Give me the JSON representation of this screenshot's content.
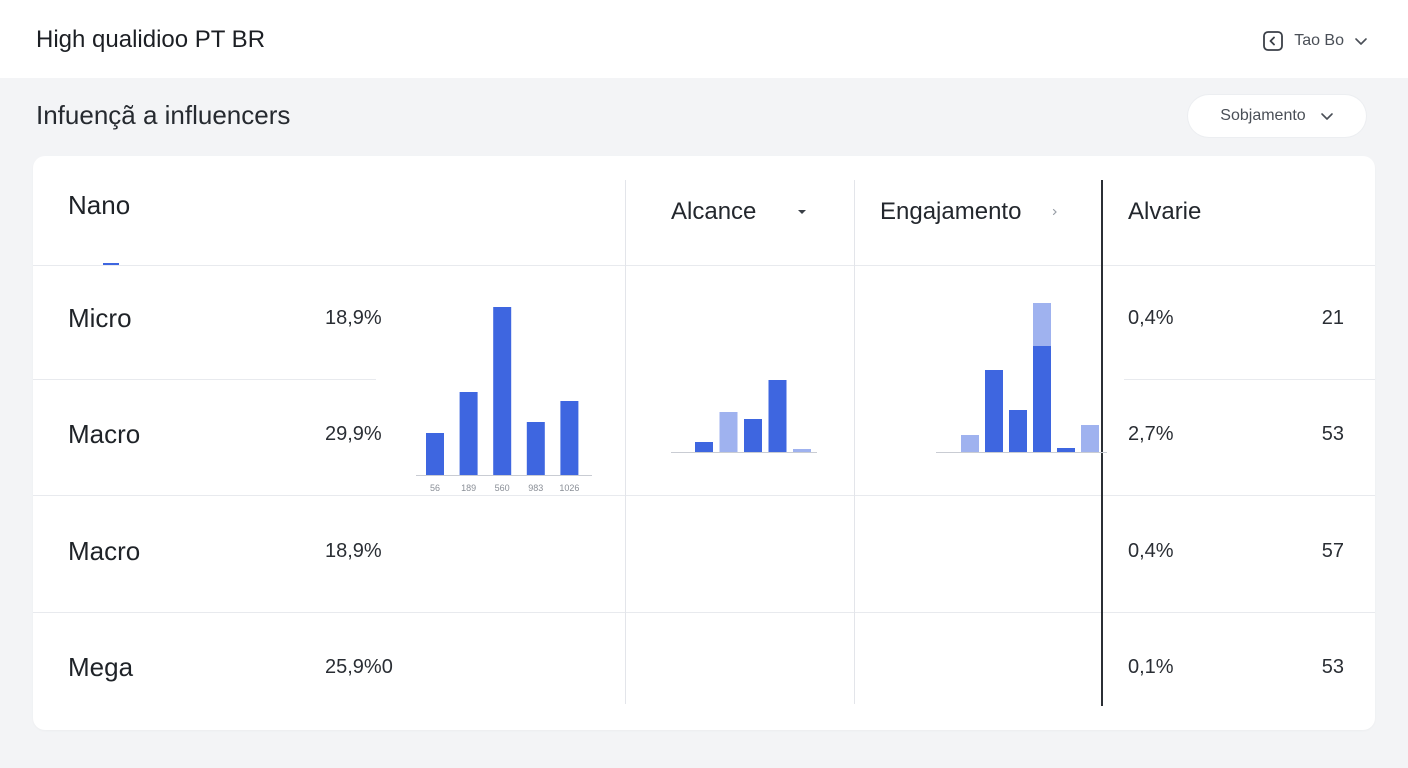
{
  "app": {
    "title": "High qualidioo PT BR"
  },
  "account": {
    "label": "Tao Bo",
    "icon": "account-icon",
    "chevron": "chevron-down-icon"
  },
  "page": {
    "title": "Infuençã a influencers"
  },
  "filter": {
    "label": "Sobjamento",
    "icon": "chevron-down-icon"
  },
  "table": {
    "first_header": "Nano",
    "columns": [
      {
        "label": "Alcance",
        "indicator": "caret-down-icon"
      },
      {
        "label": "Engajamento",
        "indicator": "chevron-right-icon"
      },
      {
        "label": "Alvarie"
      }
    ],
    "rows": [
      {
        "label": "Micro",
        "pct": "18,9%",
        "value2": "0,4%",
        "count": "21"
      },
      {
        "label": "Macro",
        "pct": "29,9%",
        "value2": "2,7%",
        "count": "53"
      },
      {
        "label": "Macro",
        "pct": "18,9%",
        "value2": "0,4%",
        "count": "57"
      },
      {
        "label": "Mega",
        "pct": "25,9%0",
        "value2": "0,1%",
        "count": "53"
      }
    ]
  },
  "colors": {
    "bar_primary": "#3e66e0",
    "bar_light": "#9fb2ef",
    "axis": "#c9ccd3"
  },
  "chart_data": [
    {
      "type": "bar",
      "categories": [
        "56",
        "189",
        "560",
        "983",
        "1026"
      ],
      "values": [
        42,
        83,
        168,
        53,
        74
      ],
      "ylim": [
        0,
        170
      ]
    },
    {
      "type": "bar",
      "values": [
        10,
        40,
        33,
        72,
        3
      ],
      "light": [
        false,
        true,
        false,
        false,
        true
      ],
      "ylim": [
        0,
        150
      ]
    },
    {
      "type": "bar",
      "series": [
        {
          "values": [
            17,
            82,
            42,
            106,
            4,
            27
          ]
        },
        {
          "values": [
            0,
            0,
            0,
            43,
            0,
            0
          ]
        }
      ],
      "light": [
        true,
        false,
        false,
        false,
        false,
        true
      ],
      "ylim": [
        0,
        150
      ]
    }
  ]
}
